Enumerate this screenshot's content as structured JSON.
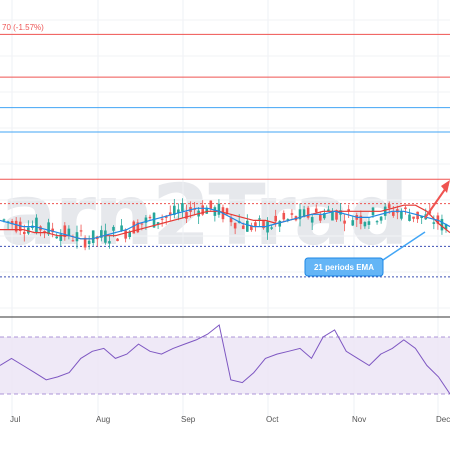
{
  "chart_data": {
    "type": "candlestick",
    "top_note": "70 (-1.57%)",
    "annotation": "21 periods EMA",
    "watermark": "arn2Trad",
    "x_labels": [
      "Jul",
      "Aug",
      "Sep",
      "Oct",
      "Nov",
      "Dec"
    ],
    "grid": true,
    "ylim": [
      0,
      100
    ],
    "levels": [
      {
        "value": 92.0,
        "color": "#ef5350",
        "style": "solid"
      },
      {
        "value": 78.0,
        "color": "#ef5350",
        "style": "solid"
      },
      {
        "value": 68.0,
        "color": "#42a5f5",
        "style": "solid"
      },
      {
        "value": 60.0,
        "color": "#42a5f5",
        "style": "solid"
      },
      {
        "value": 44.5,
        "color": "#ef5350",
        "style": "solid"
      },
      {
        "value": 36.5,
        "color": "#ef5350",
        "style": "dotted"
      },
      {
        "value": 22.5,
        "color": "#3f51b5",
        "style": "dotted"
      },
      {
        "value": 12.5,
        "color": "#3f51b5",
        "style": "dotted"
      }
    ],
    "ema_blue": [
      31,
      30,
      29,
      29,
      28,
      27,
      26,
      25,
      25,
      26,
      27,
      28,
      30,
      31,
      32,
      33,
      34,
      35,
      35,
      34,
      32,
      30,
      29,
      29,
      30,
      31,
      32,
      33,
      33,
      34,
      33,
      32,
      32,
      33,
      34,
      34,
      33,
      32,
      31,
      29
    ],
    "ema_red": [
      28,
      28,
      28,
      27,
      27,
      26,
      26,
      25,
      25,
      26,
      26,
      27,
      28,
      29,
      30,
      31,
      32,
      33,
      34,
      34,
      33,
      32,
      31,
      31,
      30,
      31,
      32,
      33,
      34,
      34,
      34,
      34,
      34,
      34,
      35,
      36,
      36,
      34,
      30,
      27
    ],
    "rsi": {
      "ylim": [
        0,
        100
      ],
      "upper": 70,
      "lower": 30,
      "values": [
        50,
        55,
        50,
        45,
        40,
        42,
        45,
        55,
        60,
        62,
        55,
        58,
        65,
        60,
        58,
        62,
        65,
        68,
        72,
        85,
        40,
        38,
        45,
        55,
        58,
        60,
        62,
        55,
        70,
        75,
        60,
        55,
        50,
        58,
        62,
        68,
        62,
        50,
        42,
        30
      ]
    }
  }
}
